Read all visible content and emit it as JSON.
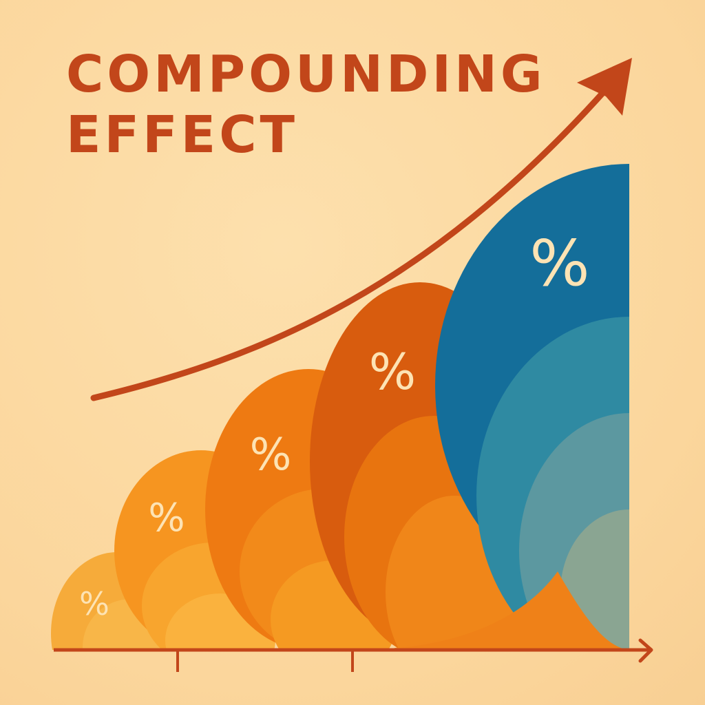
{
  "title": {
    "line1": "COMPOUNDING",
    "line2": "EFFECT"
  },
  "symbol": "%",
  "colors": {
    "background": "#fbd69c",
    "title": "#c2461a",
    "arrow": "#c2461a",
    "axis": "#c2461a",
    "wave_1": "#f6ab3a",
    "wave_2": "#f69520",
    "wave_3": "#ee7a12",
    "wave_4": "#d85c0e",
    "wave_5": "#146e9a"
  }
}
